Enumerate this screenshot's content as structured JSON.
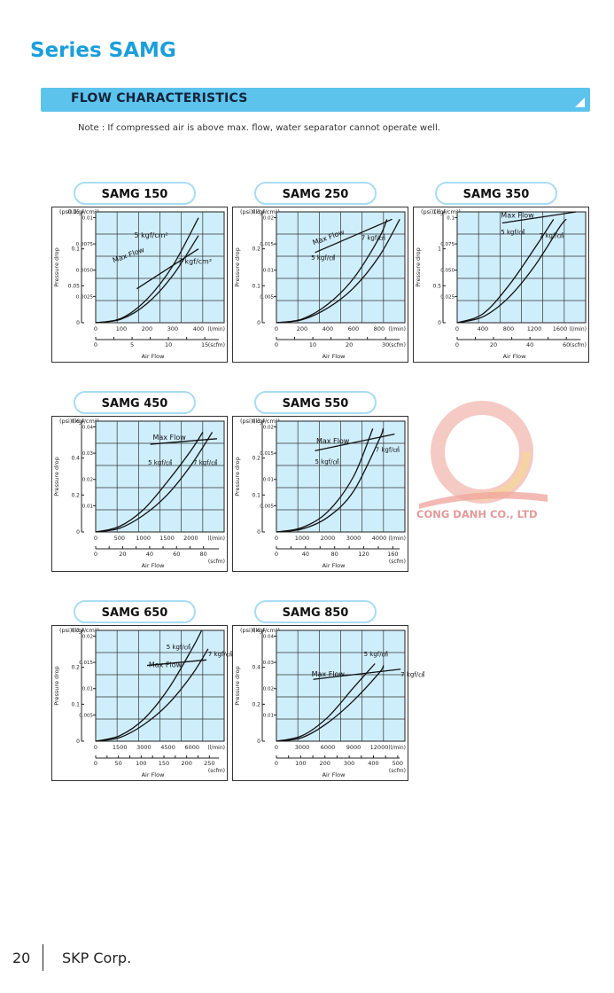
{
  "page": {
    "series_title": "Series SAMG",
    "section_title": "FLOW CHARACTERISTICS",
    "note": "Note : If compressed air is above max. flow, water separator cannot operate well.",
    "watermark_text": "CONG DANH CO., LTD",
    "page_number": "20",
    "company": "SKP Corp.",
    "colors": {
      "accent": "#1a9fdb",
      "section_bar": "#5cc3ec",
      "plot_bg": "#cfeefc",
      "curve": "#111111"
    }
  },
  "chart_data": [
    {
      "type": "line",
      "title": "SAMG 150",
      "ylabel": "Pressure drop",
      "y_units": [
        "(psi)",
        "(kgf/cm²)"
      ],
      "x1_unit": "(l/min)",
      "x2_unit": "(scfm)",
      "xlabel": "Air Flow",
      "xlim_lmin": [
        0,
        500
      ],
      "x1_ticks": [
        0,
        100,
        200,
        300,
        400
      ],
      "x2_max": 17.66,
      "x2_ticks": [
        0,
        5,
        10,
        15
      ],
      "ylim_psi": [
        0,
        0.15
      ],
      "y_psi_ticks": [
        0,
        0.05,
        0.1,
        0.15
      ],
      "y_kgf_ticks": [
        {
          "v": 0.0025,
          "l": "0.0025"
        },
        {
          "v": 0.005,
          "l": "0.0050"
        },
        {
          "v": 0.0075,
          "l": "0.0075"
        },
        {
          "v": 0.01,
          "l": "0.01"
        }
      ],
      "grid": true,
      "series": [
        {
          "name": "5 kgf/cm²",
          "x": [
            0,
            100,
            200,
            300,
            400
          ],
          "y": [
            0,
            0.006,
            0.032,
            0.077,
            0.142
          ]
        },
        {
          "name": "7 kgf/cm²",
          "x": [
            0,
            100,
            200,
            300,
            400
          ],
          "y": [
            0,
            0.005,
            0.026,
            0.064,
            0.118
          ]
        },
        {
          "name": "Max Flow",
          "x": [
            160,
            400
          ],
          "y": [
            0.046,
            0.1
          ]
        }
      ],
      "annotations": [
        {
          "text": "5 kgf/cm²",
          "x": 150,
          "y": 0.115,
          "size": 8
        },
        {
          "text": "Max Flow",
          "x": 70,
          "y": 0.081,
          "size": 8,
          "rotate": -20
        },
        {
          "text": "7 kgf/cm²",
          "x": 320,
          "y": 0.08,
          "size": 8
        }
      ]
    },
    {
      "type": "line",
      "title": "SAMG 250",
      "ylabel": "Pressure drop",
      "y_units": [
        "(psi)",
        "(kgf/cm²)"
      ],
      "x1_unit": "(l/min)",
      "x2_unit": "(scfm)",
      "xlabel": "Air Flow",
      "xlim_lmin": [
        0,
        1000
      ],
      "x1_ticks": [
        0,
        200,
        400,
        600,
        800
      ],
      "x2_max": 35.31,
      "x2_ticks": [
        0,
        10,
        20,
        30
      ],
      "ylim_psi": [
        0,
        0.3
      ],
      "y_psi_ticks": [
        0,
        0.1,
        0.2,
        0.3
      ],
      "y_kgf_ticks": [
        {
          "v": 0.005,
          "l": "0.005"
        },
        {
          "v": 0.01,
          "l": "0.01"
        },
        {
          "v": 0.015,
          "l": "0.015"
        },
        {
          "v": 0.02,
          "l": "0.02"
        }
      ],
      "grid": true,
      "series": [
        {
          "name": "5 kgf/cm²",
          "x": [
            0,
            200,
            400,
            600,
            800,
            860
          ],
          "y": [
            0,
            0.01,
            0.05,
            0.12,
            0.23,
            0.28
          ]
        },
        {
          "name": "7 kgf/cm²",
          "x": [
            0,
            200,
            400,
            600,
            800,
            960
          ],
          "y": [
            0,
            0.008,
            0.04,
            0.094,
            0.18,
            0.28
          ]
        },
        {
          "name": "Max Flow",
          "x": [
            300,
            900
          ],
          "y": [
            0.19,
            0.28
          ]
        }
      ],
      "annotations": [
        {
          "text": "Max Flow",
          "x": 290,
          "y": 0.21,
          "size": 8,
          "rotate": -20
        },
        {
          "text": "7 kgf/㎠",
          "x": 660,
          "y": 0.225,
          "size": 7
        },
        {
          "text": "5 kgf/㎠",
          "x": 270,
          "y": 0.17,
          "size": 7
        }
      ]
    },
    {
      "type": "line",
      "title": "SAMG 350",
      "ylabel": "Pressure drop",
      "y_units": [
        "(psi)",
        "(kgf/cm²)"
      ],
      "x1_unit": "(l/min)",
      "x2_unit": "(scfm)",
      "xlabel": "Air Flow",
      "xlim_lmin": [
        0,
        2000
      ],
      "x1_ticks": [
        0,
        400,
        800,
        1200,
        1600
      ],
      "x2_max": 70.63,
      "x2_ticks": [
        0,
        20,
        40,
        60
      ],
      "ylim_psi": [
        0,
        1.5
      ],
      "y_psi_ticks": [
        0,
        0.5,
        1,
        1.5
      ],
      "y_kgf_ticks": [
        {
          "v": 0.025,
          "l": "0.025"
        },
        {
          "v": 0.05,
          "l": "0.050"
        },
        {
          "v": 0.075,
          "l": "0.075"
        },
        {
          "v": 0.1,
          "l": "0.1"
        }
      ],
      "grid": true,
      "series": [
        {
          "name": "5 kgf/cm²",
          "x": [
            0,
            400,
            800,
            1200,
            1500
          ],
          "y": [
            0,
            0.12,
            0.5,
            1.0,
            1.4
          ]
        },
        {
          "name": "7 kgf/cm²",
          "x": [
            0,
            400,
            800,
            1200,
            1600,
            1700
          ],
          "y": [
            0,
            0.08,
            0.34,
            0.76,
            1.3,
            1.4
          ]
        },
        {
          "name": "Max Flow",
          "x": [
            700,
            1850
          ],
          "y": [
            1.35,
            1.5
          ]
        }
      ],
      "annotations": [
        {
          "text": "Max Flow",
          "x": 680,
          "y": 1.42,
          "size": 8
        },
        {
          "text": "5 kgf/㎠",
          "x": 680,
          "y": 1.2,
          "size": 7
        },
        {
          "text": "7 kgf/㎠",
          "x": 1280,
          "y": 1.15,
          "size": 7
        }
      ]
    },
    {
      "type": "line",
      "title": "SAMG 450",
      "ylabel": "Pressure drop",
      "y_units": [
        "(psi)",
        "(kgf/cm²)"
      ],
      "x1_unit": "(l/min)",
      "x2_unit": "(scfm)",
      "xlabel": "Air Flow",
      "xlim_lmin": [
        0,
        2700
      ],
      "x1_ticks": [
        0,
        500,
        1000,
        1500,
        2000
      ],
      "x2_max": 95.35,
      "x2_ticks": [
        0,
        20,
        40,
        60,
        80
      ],
      "ylim_psi": [
        0,
        0.6
      ],
      "y_psi_ticks": [
        0,
        0.2,
        0.4,
        0.6
      ],
      "y_kgf_ticks": [
        {
          "v": 0.01,
          "l": "0.01"
        },
        {
          "v": 0.02,
          "l": "0.02"
        },
        {
          "v": 0.03,
          "l": "0.03"
        },
        {
          "v": 0.04,
          "l": "0.04"
        }
      ],
      "grid": true,
      "series": [
        {
          "name": "5 kgf/cm²",
          "x": [
            0,
            500,
            1000,
            1500,
            2000,
            2250
          ],
          "y": [
            0,
            0.03,
            0.12,
            0.27,
            0.44,
            0.54
          ]
        },
        {
          "name": "7 kgf/cm²",
          "x": [
            0,
            500,
            1000,
            1500,
            2000,
            2450
          ],
          "y": [
            0,
            0.02,
            0.09,
            0.2,
            0.36,
            0.54
          ]
        },
        {
          "name": "Max Flow",
          "x": [
            1150,
            2550
          ],
          "y": [
            0.475,
            0.505
          ]
        }
      ],
      "annotations": [
        {
          "text": "Max Flow",
          "x": 1200,
          "y": 0.5,
          "size": 8
        },
        {
          "text": "5 kgf/㎠",
          "x": 1100,
          "y": 0.365,
          "size": 7
        },
        {
          "text": "7 kgf/㎠",
          "x": 2050,
          "y": 0.365,
          "size": 7
        }
      ]
    },
    {
      "type": "line",
      "title": "SAMG 550",
      "ylabel": "Pressure drop",
      "y_units": [
        "(psi)",
        "(kgf/cm²)"
      ],
      "x1_unit": "(l/min)",
      "x2_unit": "(scfm)",
      "xlabel": "Air Flow",
      "xlim_lmin": [
        0,
        5000
      ],
      "x1_ticks": [
        0,
        1000,
        2000,
        3000,
        4000
      ],
      "x2_max": 176.6,
      "x2_ticks": [
        0,
        40,
        80,
        120,
        160
      ],
      "ylim_psi": [
        0,
        0.3
      ],
      "y_psi_ticks": [
        0,
        0.1,
        0.2,
        0.3
      ],
      "y_kgf_ticks": [
        {
          "v": 0.005,
          "l": "0.005"
        },
        {
          "v": 0.01,
          "l": "0.01"
        },
        {
          "v": 0.015,
          "l": "0.015"
        },
        {
          "v": 0.02,
          "l": "0.02"
        }
      ],
      "grid": true,
      "series": [
        {
          "name": "5 kgf/cm²",
          "x": [
            0,
            1000,
            2000,
            3000,
            3750
          ],
          "y": [
            0,
            0.012,
            0.055,
            0.15,
            0.28
          ]
        },
        {
          "name": "7 kgf/cm²",
          "x": [
            0,
            1000,
            2000,
            3000,
            4000,
            4150
          ],
          "y": [
            0,
            0.008,
            0.04,
            0.11,
            0.25,
            0.28
          ]
        },
        {
          "name": "Max Flow",
          "x": [
            1500,
            4600
          ],
          "y": [
            0.22,
            0.265
          ]
        }
      ],
      "annotations": [
        {
          "text": "Max Flow",
          "x": 1550,
          "y": 0.24,
          "size": 8
        },
        {
          "text": "7 kgf/㎠",
          "x": 3850,
          "y": 0.217,
          "size": 7
        },
        {
          "text": "5 kgf/㎠",
          "x": 1500,
          "y": 0.185,
          "size": 7
        }
      ]
    },
    {
      "type": "line",
      "title": "SAMG 650",
      "ylabel": "Pressure drop",
      "y_units": [
        "(psi)",
        "(kgf/cm²)"
      ],
      "x1_unit": "(l/min)",
      "x2_unit": "(scfm)",
      "xlabel": "Air Flow",
      "xlim_lmin": [
        0,
        8000
      ],
      "x1_ticks": [
        0,
        1500,
        3000,
        4500,
        6000
      ],
      "x2_max": 282.5,
      "x2_ticks": [
        0,
        50,
        100,
        150,
        200,
        250
      ],
      "ylim_psi": [
        0,
        0.3
      ],
      "y_psi_ticks": [
        0,
        0.1,
        0.2,
        0.3
      ],
      "y_kgf_ticks": [
        {
          "v": 0.005,
          "l": "0.005"
        },
        {
          "v": 0.01,
          "l": "0.01"
        },
        {
          "v": 0.015,
          "l": "0.015"
        },
        {
          "v": 0.02,
          "l": "0.02"
        }
      ],
      "grid": true,
      "series": [
        {
          "name": "5 kgf/cm²",
          "x": [
            0,
            1500,
            3000,
            4500,
            6000,
            6600
          ],
          "y": [
            0,
            0.015,
            0.06,
            0.14,
            0.25,
            0.3
          ]
        },
        {
          "name": "7 kgf/cm²",
          "x": [
            0,
            1500,
            3000,
            4500,
            6000,
            7000
          ],
          "y": [
            0,
            0.01,
            0.045,
            0.1,
            0.18,
            0.25
          ]
        },
        {
          "name": "Max Flow",
          "x": [
            3200,
            6900
          ],
          "y": [
            0.205,
            0.22
          ]
        }
      ],
      "annotations": [
        {
          "text": "5 kgf/㎠",
          "x": 4400,
          "y": 0.25,
          "size": 7
        },
        {
          "text": "7 kgf/㎠",
          "x": 7000,
          "y": 0.23,
          "size": 7
        },
        {
          "text": "Max Flow",
          "x": 3300,
          "y": 0.2,
          "size": 8
        }
      ]
    },
    {
      "type": "line",
      "title": "SAMG 850",
      "ylabel": "Pressure drop",
      "y_units": [
        "(psi)",
        "(kgf/cm²)"
      ],
      "x1_unit": "(l/min)",
      "x2_unit": "(scfm)",
      "xlabel": "Air Flow",
      "xlim_lmin": [
        0,
        15000
      ],
      "x1_ticks": [
        0,
        3000,
        6000,
        9000,
        12000
      ],
      "x2_max": 529.7,
      "x2_ticks": [
        0,
        100,
        200,
        300,
        400,
        500
      ],
      "ylim_psi": [
        0,
        0.6
      ],
      "y_psi_ticks": [
        0,
        0.2,
        0.4,
        0.6
      ],
      "y_kgf_ticks": [
        {
          "v": 0.01,
          "l": "0.01"
        },
        {
          "v": 0.02,
          "l": "0.02"
        },
        {
          "v": 0.03,
          "l": "0.03"
        },
        {
          "v": 0.04,
          "l": "0.04"
        }
      ],
      "grid": true,
      "series": [
        {
          "name": "5 kgf/cm²",
          "x": [
            0,
            3000,
            6000,
            9000,
            11500
          ],
          "y": [
            0,
            0.03,
            0.13,
            0.29,
            0.42
          ]
        },
        {
          "name": "7 kgf/cm²",
          "x": [
            0,
            3000,
            6000,
            9000,
            12000,
            12500
          ],
          "y": [
            0,
            0.02,
            0.1,
            0.22,
            0.37,
            0.41
          ]
        },
        {
          "name": "Max Flow",
          "x": [
            4300,
            14500
          ],
          "y": [
            0.335,
            0.39
          ]
        }
      ],
      "annotations": [
        {
          "text": "5 kgf/㎠",
          "x": 10200,
          "y": 0.46,
          "size": 7
        },
        {
          "text": "Max Flow",
          "x": 4100,
          "y": 0.35,
          "size": 8
        },
        {
          "text": "7 kgf/㎠",
          "x": 14500,
          "y": 0.35,
          "size": 7
        }
      ]
    }
  ]
}
